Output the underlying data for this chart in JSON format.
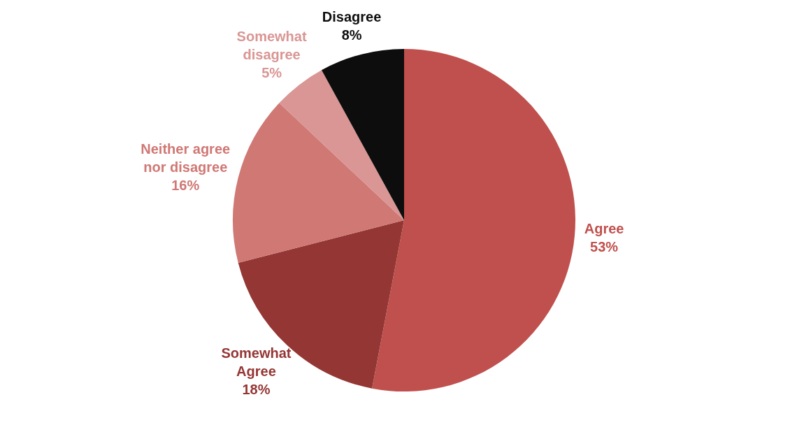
{
  "chart_data": {
    "type": "pie",
    "categories": [
      "Agree",
      "Somewhat Agree",
      "Neither agree nor disagree",
      "Somewhat disagree",
      "Disagree"
    ],
    "values": [
      53,
      18,
      16,
      5,
      8
    ],
    "colors": [
      "#c0504d",
      "#943634",
      "#d07874",
      "#d99694",
      "#0d0d0d"
    ],
    "value_labels": [
      "53%",
      "18%",
      "16%",
      "5%",
      "8%"
    ],
    "legend": false
  }
}
